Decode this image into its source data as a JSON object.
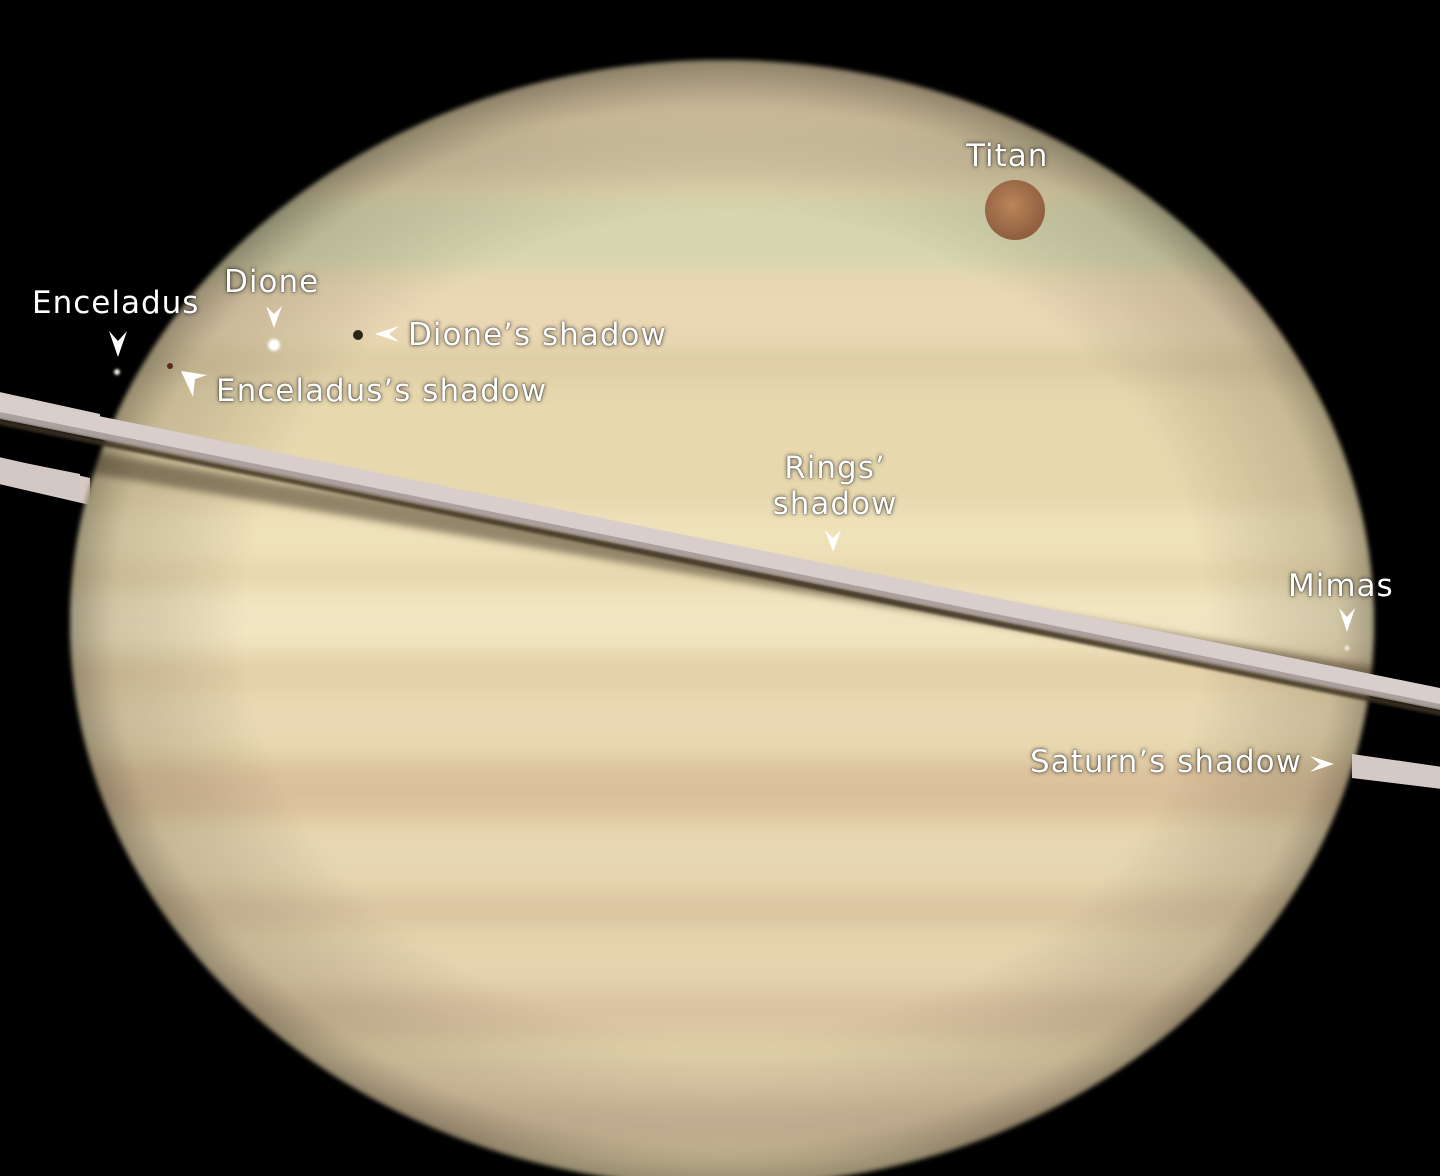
{
  "image": {
    "subject": "Saturn",
    "colors": {
      "background": "#000000",
      "planet_light": "#f3e7c1",
      "planet_base": "#e7d7ad",
      "planet_edge": "#b9ac86",
      "band_tan": "#d9b997",
      "band_green": "#cdd3ad",
      "ring": "#d8cdca",
      "ring_shadow": "#3a2f22",
      "titan": "#b07a54",
      "label": "#ffffff"
    }
  },
  "labels": {
    "titan": "Titan",
    "dione": "Dione",
    "enceladus": "Enceladus",
    "dione_shadow": "Dione’s shadow",
    "enceladus_shadow": "Enceladus’s shadow",
    "rings_shadow_line1": "Rings’",
    "rings_shadow_line2": "shadow",
    "mimas": "Mimas",
    "saturn_shadow": "Saturn’s shadow"
  },
  "icons": {
    "pointer": "arrowhead-icon"
  }
}
